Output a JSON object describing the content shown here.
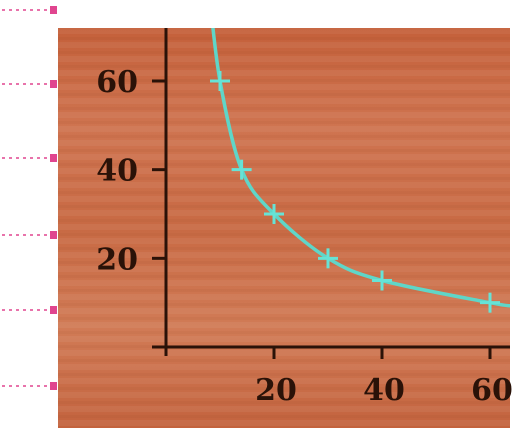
{
  "chart_data": {
    "type": "line",
    "x": [
      10,
      14,
      20,
      30,
      40,
      60
    ],
    "y": [
      60,
      40,
      30,
      20,
      15,
      10
    ],
    "xlim": [
      0,
      62
    ],
    "ylim": [
      0,
      72
    ],
    "x_ticks": [
      20,
      40,
      60
    ],
    "y_ticks": [
      20,
      40,
      60
    ],
    "x_tick_labels": [
      "20",
      "40",
      "60"
    ],
    "y_tick_labels": [
      "20",
      "40",
      "60"
    ],
    "title": "",
    "xlabel": "",
    "ylabel": "",
    "grid": false,
    "markers": "plus",
    "colors": {
      "curve": "#5fd6c8",
      "marker": "#66e3d6",
      "axis": "#2a1208",
      "background": "#c96a43",
      "edge_dash": "#e0458f"
    }
  }
}
